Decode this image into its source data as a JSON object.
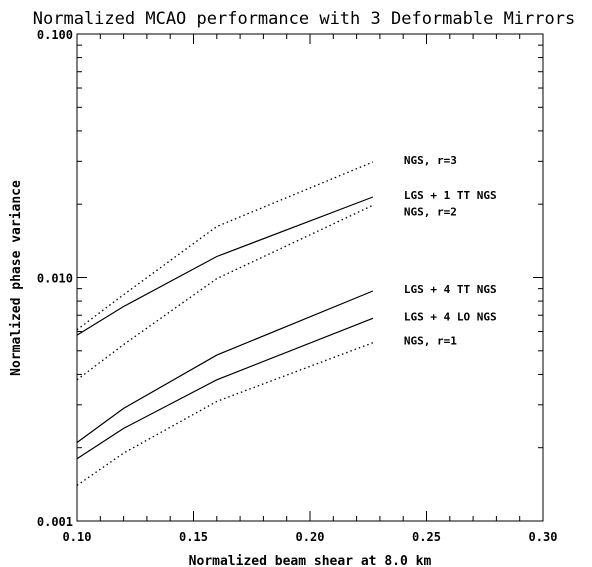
{
  "chart_data": {
    "type": "line",
    "title": "Normalized MCAO performance with 3 Deformable Mirrors",
    "xlabel": "Normalized beam shear at 8.0 km",
    "ylabel": "Normalized phase variance",
    "xlim": [
      0.1,
      0.3
    ],
    "ylim": [
      0.001,
      0.1
    ],
    "yscale": "log",
    "grid": false,
    "x_ticks": [
      0.1,
      0.15,
      0.2,
      0.25,
      0.3
    ],
    "x_tick_labels": [
      "0.10",
      "0.15",
      "0.20",
      "0.25",
      "0.30"
    ],
    "y_ticks": [
      0.001,
      0.01,
      0.1
    ],
    "y_tick_labels": [
      "0.001",
      "0.010",
      "0.100"
    ],
    "x": [
      0.1,
      0.12,
      0.16,
      0.227
    ],
    "series": [
      {
        "name": "NGS, r=3",
        "style": "dotted",
        "values": [
          0.0061,
          0.0085,
          0.0162,
          0.0298
        ]
      },
      {
        "name": "LGS + 1 TT NGS",
        "style": "solid",
        "values": [
          0.0058,
          0.0076,
          0.0122,
          0.0214
        ]
      },
      {
        "name": "NGS, r=2",
        "style": "dotted",
        "values": [
          0.0038,
          0.0053,
          0.0099,
          0.0198
        ]
      },
      {
        "name": "LGS + 4 TT NGS",
        "style": "solid",
        "values": [
          0.0021,
          0.0029,
          0.0048,
          0.0088
        ]
      },
      {
        "name": "LGS + 4 LO NGS",
        "style": "solid",
        "values": [
          0.0018,
          0.0024,
          0.0038,
          0.0068
        ]
      },
      {
        "name": "NGS, r=1",
        "style": "dotted",
        "values": [
          0.0014,
          0.0019,
          0.0031,
          0.0054
        ]
      }
    ]
  }
}
